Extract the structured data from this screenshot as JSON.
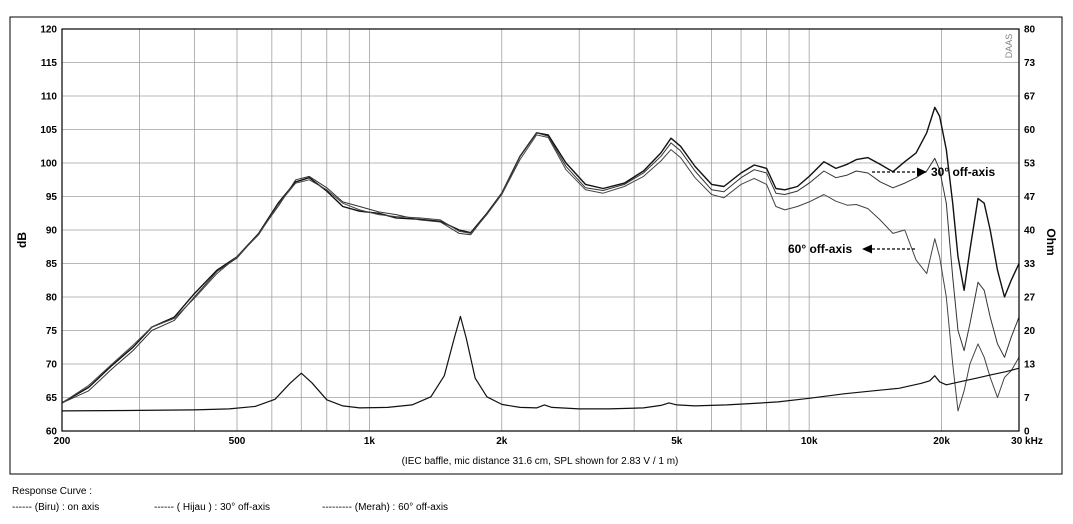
{
  "chart_data": {
    "type": "line",
    "ylabel_left": "dB",
    "ylabel_right": "Ohm",
    "x_scale": "log",
    "xlim": [
      200,
      30000
    ],
    "ylim_left": [
      60,
      120
    ],
    "ylim_right": [
      0,
      80
    ],
    "x_ticks": [
      {
        "value": 200,
        "label": "200"
      },
      {
        "value": 500,
        "label": "500"
      },
      {
        "value": 1000,
        "label": "1k"
      },
      {
        "value": 2000,
        "label": "2k"
      },
      {
        "value": 5000,
        "label": "5k"
      },
      {
        "value": 10000,
        "label": "10k"
      },
      {
        "value": 20000,
        "label": "20k"
      },
      {
        "value": 30000,
        "label": "30 kHz"
      }
    ],
    "y_ticks_left": [
      120,
      115,
      110,
      105,
      100,
      95,
      90,
      85,
      80,
      75,
      70,
      65,
      60
    ],
    "y_ticks_right": [
      "80",
      "73",
      "67",
      "60",
      "53",
      "47",
      "40",
      "33",
      "27",
      "20",
      "13",
      "7",
      "0"
    ],
    "note": "(IEC baffle, mic distance 31.6 cm, SPL shown for 2.83 V / 1 m)",
    "watermark": "DAAS",
    "grid": true,
    "annotations": [
      {
        "text": "30° off-axis",
        "x": 17000,
        "y": 99
      },
      {
        "text": "60° off-axis",
        "x": 13500,
        "y": 87
      }
    ],
    "series": [
      {
        "name": "on axis",
        "axis": "left",
        "points": [
          [
            200,
            64.2
          ],
          [
            230,
            66.5
          ],
          [
            260,
            69.8
          ],
          [
            290,
            72.5
          ],
          [
            320,
            75.5
          ],
          [
            360,
            77
          ],
          [
            400,
            80.5
          ],
          [
            450,
            84
          ],
          [
            500,
            86
          ],
          [
            560,
            89.5
          ],
          [
            620,
            94
          ],
          [
            680,
            97.2
          ],
          [
            730,
            97.8
          ],
          [
            800,
            95.8
          ],
          [
            870,
            93.5
          ],
          [
            950,
            92.8
          ],
          [
            1050,
            92.5
          ],
          [
            1150,
            91.8
          ],
          [
            1300,
            91.6
          ],
          [
            1450,
            91.3
          ],
          [
            1600,
            90
          ],
          [
            1700,
            89.6
          ],
          [
            1850,
            92.5
          ],
          [
            2000,
            95.5
          ],
          [
            2200,
            101
          ],
          [
            2400,
            104.5
          ],
          [
            2550,
            104.2
          ],
          [
            2800,
            100
          ],
          [
            3100,
            96.8
          ],
          [
            3400,
            96.2
          ],
          [
            3800,
            97
          ],
          [
            4200,
            98.8
          ],
          [
            4600,
            101.5
          ],
          [
            4850,
            103.7
          ],
          [
            5100,
            102.5
          ],
          [
            5500,
            99.5
          ],
          [
            6000,
            96.8
          ],
          [
            6400,
            96.5
          ],
          [
            7000,
            98.5
          ],
          [
            7500,
            99.7
          ],
          [
            8000,
            99.2
          ],
          [
            8400,
            96.2
          ],
          [
            8800,
            96
          ],
          [
            9400,
            96.5
          ],
          [
            10000,
            98
          ],
          [
            10800,
            100.2
          ],
          [
            11500,
            99.2
          ],
          [
            12200,
            99.8
          ],
          [
            12800,
            100.5
          ],
          [
            13600,
            100.8
          ],
          [
            14500,
            99.8
          ],
          [
            15500,
            98.7
          ],
          [
            16500,
            100.2
          ],
          [
            17500,
            101.5
          ],
          [
            18500,
            104.5
          ],
          [
            19300,
            108.3
          ],
          [
            19800,
            107
          ],
          [
            20500,
            102
          ],
          [
            21200,
            94
          ],
          [
            21800,
            86
          ],
          [
            22500,
            81
          ],
          [
            23200,
            87
          ],
          [
            24200,
            94.7
          ],
          [
            25000,
            94
          ],
          [
            25800,
            90
          ],
          [
            26800,
            84
          ],
          [
            27800,
            80
          ],
          [
            28800,
            82.5
          ],
          [
            30000,
            85
          ]
        ]
      },
      {
        "name": "30° off-axis",
        "axis": "left",
        "points": [
          [
            200,
            64.2
          ],
          [
            230,
            66
          ],
          [
            260,
            69.3
          ],
          [
            290,
            72
          ],
          [
            320,
            75
          ],
          [
            360,
            76.5
          ],
          [
            400,
            80
          ],
          [
            450,
            83.8
          ],
          [
            500,
            85.8
          ],
          [
            560,
            89.5
          ],
          [
            620,
            93.5
          ],
          [
            680,
            97.5
          ],
          [
            730,
            98
          ],
          [
            800,
            96.3
          ],
          [
            870,
            94.2
          ],
          [
            950,
            93.5
          ],
          [
            1050,
            92.7
          ],
          [
            1150,
            92.3
          ],
          [
            1300,
            91.5
          ],
          [
            1450,
            91.2
          ],
          [
            1600,
            89.5
          ],
          [
            1700,
            89.3
          ],
          [
            1850,
            92.4
          ],
          [
            2000,
            95.5
          ],
          [
            2200,
            101
          ],
          [
            2400,
            104.5
          ],
          [
            2550,
            104
          ],
          [
            2800,
            99.5
          ],
          [
            3100,
            96.3
          ],
          [
            3400,
            95.9
          ],
          [
            3800,
            96.8
          ],
          [
            4200,
            98.5
          ],
          [
            4600,
            101
          ],
          [
            4850,
            103
          ],
          [
            5100,
            101.8
          ],
          [
            5500,
            98.8
          ],
          [
            6000,
            96
          ],
          [
            6400,
            95.7
          ],
          [
            7000,
            97.8
          ],
          [
            7500,
            99
          ],
          [
            8000,
            98.5
          ],
          [
            8400,
            95.5
          ],
          [
            8800,
            95.3
          ],
          [
            9400,
            95.8
          ],
          [
            10000,
            97
          ],
          [
            10800,
            98.8
          ],
          [
            11500,
            97.8
          ],
          [
            12200,
            98.2
          ],
          [
            12800,
            98.8
          ],
          [
            13600,
            98.5
          ],
          [
            14500,
            97.2
          ],
          [
            15500,
            96.3
          ],
          [
            16500,
            97
          ],
          [
            17500,
            97.8
          ],
          [
            18500,
            98.8
          ],
          [
            19300,
            100.7
          ],
          [
            19800,
            99
          ],
          [
            20500,
            94
          ],
          [
            21200,
            83
          ],
          [
            21800,
            75
          ],
          [
            22500,
            72
          ],
          [
            23200,
            76
          ],
          [
            24200,
            82.2
          ],
          [
            25000,
            81
          ],
          [
            25800,
            77
          ],
          [
            26800,
            73
          ],
          [
            27800,
            71
          ],
          [
            28800,
            74
          ],
          [
            30000,
            77
          ]
        ]
      },
      {
        "name": "60° off-axis",
        "axis": "left",
        "points": [
          [
            200,
            64.2
          ],
          [
            230,
            66.8
          ],
          [
            260,
            70
          ],
          [
            290,
            72.8
          ],
          [
            320,
            75.5
          ],
          [
            360,
            76.8
          ],
          [
            400,
            79.8
          ],
          [
            450,
            83.5
          ],
          [
            500,
            86
          ],
          [
            560,
            89.3
          ],
          [
            620,
            93.8
          ],
          [
            680,
            97
          ],
          [
            730,
            97.5
          ],
          [
            800,
            96
          ],
          [
            870,
            94
          ],
          [
            950,
            93
          ],
          [
            1050,
            92.3
          ],
          [
            1150,
            92
          ],
          [
            1300,
            91.8
          ],
          [
            1450,
            91.5
          ],
          [
            1600,
            89.8
          ],
          [
            1700,
            89.5
          ],
          [
            1850,
            92.3
          ],
          [
            2000,
            95.3
          ],
          [
            2200,
            100.5
          ],
          [
            2400,
            104.2
          ],
          [
            2550,
            103.8
          ],
          [
            2800,
            99
          ],
          [
            3100,
            96
          ],
          [
            3400,
            95.5
          ],
          [
            3800,
            96.5
          ],
          [
            4200,
            98
          ],
          [
            4600,
            100.3
          ],
          [
            4850,
            102
          ],
          [
            5100,
            100.8
          ],
          [
            5500,
            97.8
          ],
          [
            6000,
            95.3
          ],
          [
            6400,
            94.8
          ],
          [
            7000,
            96.8
          ],
          [
            7500,
            97.7
          ],
          [
            8000,
            96.8
          ],
          [
            8400,
            93.5
          ],
          [
            8800,
            93
          ],
          [
            9400,
            93.5
          ],
          [
            10000,
            94.2
          ],
          [
            10800,
            95.3
          ],
          [
            11500,
            94.3
          ],
          [
            12200,
            93.7
          ],
          [
            12800,
            93.8
          ],
          [
            13600,
            93.2
          ],
          [
            14500,
            91.5
          ],
          [
            15500,
            89.5
          ],
          [
            16500,
            90
          ],
          [
            17500,
            85.5
          ],
          [
            18500,
            83.5
          ],
          [
            19300,
            88.7
          ],
          [
            19800,
            86
          ],
          [
            20500,
            80
          ],
          [
            21200,
            70
          ],
          [
            21800,
            63
          ],
          [
            22500,
            66
          ],
          [
            23200,
            70
          ],
          [
            24200,
            73
          ],
          [
            25000,
            71
          ],
          [
            25800,
            68
          ],
          [
            26800,
            65
          ],
          [
            27800,
            68
          ],
          [
            28800,
            69
          ],
          [
            30000,
            71
          ]
        ]
      },
      {
        "name": "impedance",
        "axis": "right",
        "points": [
          [
            200,
            4
          ],
          [
            300,
            4.1
          ],
          [
            400,
            4.2
          ],
          [
            480,
            4.4
          ],
          [
            550,
            4.9
          ],
          [
            610,
            6.3
          ],
          [
            660,
            9.5
          ],
          [
            700,
            11.5
          ],
          [
            740,
            9.6
          ],
          [
            800,
            6.2
          ],
          [
            870,
            5
          ],
          [
            950,
            4.6
          ],
          [
            1100,
            4.7
          ],
          [
            1250,
            5.2
          ],
          [
            1380,
            6.8
          ],
          [
            1480,
            11
          ],
          [
            1560,
            18.5
          ],
          [
            1610,
            22.8
          ],
          [
            1660,
            18.5
          ],
          [
            1740,
            10.5
          ],
          [
            1850,
            6.8
          ],
          [
            2000,
            5.3
          ],
          [
            2200,
            4.7
          ],
          [
            2400,
            4.6
          ],
          [
            2500,
            5.2
          ],
          [
            2600,
            4.7
          ],
          [
            3000,
            4.4
          ],
          [
            3500,
            4.4
          ],
          [
            4200,
            4.6
          ],
          [
            4600,
            5.1
          ],
          [
            4800,
            5.6
          ],
          [
            5000,
            5.2
          ],
          [
            5500,
            5
          ],
          [
            6500,
            5.2
          ],
          [
            7500,
            5.5
          ],
          [
            8500,
            5.8
          ],
          [
            10000,
            6.5
          ],
          [
            12000,
            7.4
          ],
          [
            14000,
            8
          ],
          [
            16000,
            8.5
          ],
          [
            18000,
            9.5
          ],
          [
            18800,
            10
          ],
          [
            19300,
            11
          ],
          [
            19800,
            9.8
          ],
          [
            20500,
            9.2
          ],
          [
            22000,
            9.8
          ],
          [
            24000,
            10.5
          ],
          [
            26000,
            11.2
          ],
          [
            28000,
            11.8
          ],
          [
            30000,
            12.5
          ]
        ]
      }
    ]
  },
  "legend": {
    "title": "Response Curve :",
    "items": [
      {
        "dash": "------",
        "label": "(Biru)  : on axis"
      },
      {
        "dash": "------",
        "label": "( Hijau ) : 30° off-axis"
      },
      {
        "dash": "---------",
        "label": "(Merah) : 60° off-axis"
      }
    ]
  }
}
